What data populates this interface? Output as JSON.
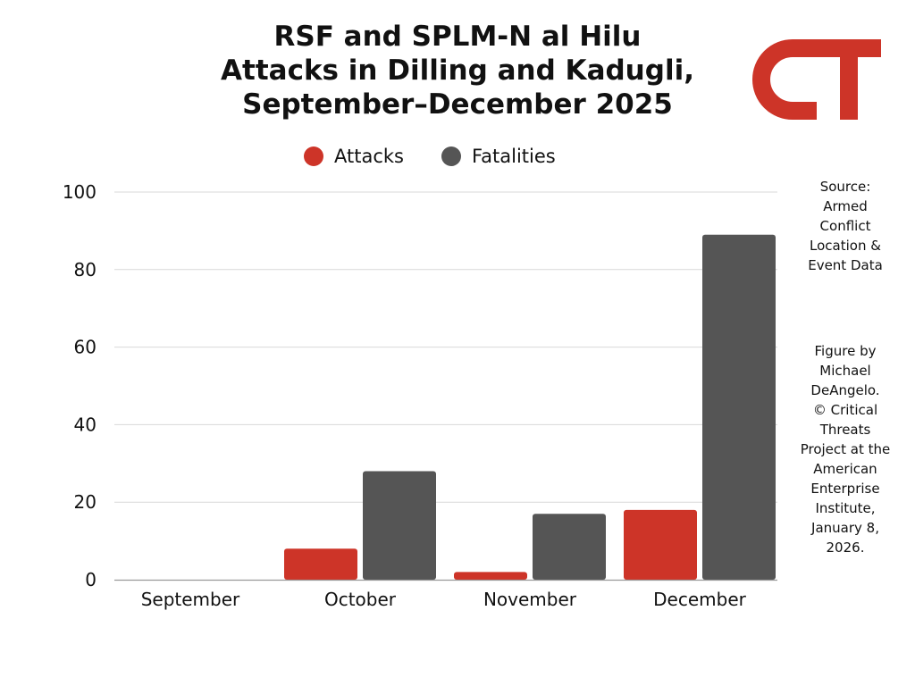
{
  "title_lines": [
    "RSF and SPLM-N al Hilu",
    "Attacks in Dilling and Kadugli,",
    "September–December 2025"
  ],
  "logo": {
    "text": "CT",
    "color": "#cd3428"
  },
  "source_note_lines": [
    "Source:",
    "Armed",
    "Conflict",
    "Location &",
    "Event Data"
  ],
  "credit_note_lines": [
    "Figure by",
    "Michael",
    "DeAngelo.",
    "© Critical",
    "Threats",
    "Project at the",
    "American",
    "Enterprise",
    "Institute,",
    "January 8,",
    "2026."
  ],
  "chart_data": {
    "type": "bar",
    "title": "RSF and SPLM-N al Hilu Attacks in Dilling and Kadugli, September–December 2025",
    "categories": [
      "September",
      "October",
      "November",
      "December"
    ],
    "series": [
      {
        "name": "Attacks",
        "values": [
          0,
          8,
          2,
          18
        ],
        "color": "#cd3428"
      },
      {
        "name": "Fatalities",
        "values": [
          0,
          28,
          17,
          89
        ],
        "color": "#555555"
      }
    ],
    "ylim": [
      0,
      100
    ],
    "yticks": [
      0,
      20,
      40,
      60,
      80,
      100
    ],
    "grid": true,
    "legend_position": "top-center",
    "xlabel": "",
    "ylabel": ""
  }
}
